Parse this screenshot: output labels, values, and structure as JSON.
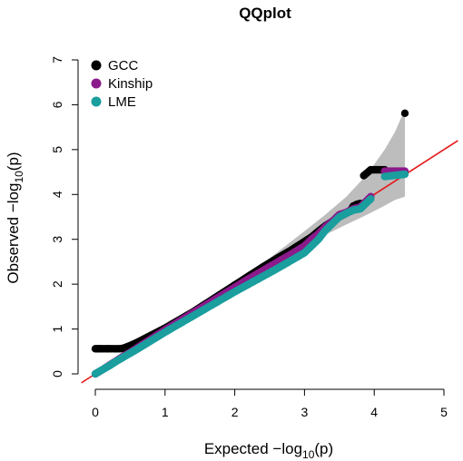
{
  "chart_data": {
    "type": "scatter",
    "title": "QQplot",
    "xlabel": {
      "prefix": "Expected  −log",
      "sub": "10",
      "suffix": "(p)"
    },
    "ylabel": {
      "prefix": "Observed  −log",
      "sub": "10",
      "suffix": "(p)"
    },
    "xlim": [
      0,
      5
    ],
    "ylim": [
      0,
      7
    ],
    "x_ticks": [
      "0",
      "1",
      "2",
      "3",
      "4",
      "5"
    ],
    "y_ticks": [
      "0",
      "1",
      "2",
      "3",
      "4",
      "5",
      "6",
      "7"
    ],
    "legend_position": "top-left",
    "reference_line": {
      "slope": 1,
      "intercept": 0,
      "color": "#e41a1c"
    },
    "confidence_band": {
      "color": "#bdbdbd",
      "x": [
        0.0,
        0.5,
        1.0,
        1.5,
        2.0,
        2.5,
        3.0,
        3.3,
        3.6,
        3.9,
        4.15,
        4.3,
        4.44
      ],
      "lower": [
        0.0,
        0.49,
        0.98,
        1.47,
        1.95,
        2.42,
        2.85,
        3.1,
        3.33,
        3.55,
        3.75,
        3.88,
        3.95
      ],
      "upper": [
        0.0,
        0.51,
        1.02,
        1.53,
        2.05,
        2.58,
        3.18,
        3.55,
        3.95,
        4.45,
        5.0,
        5.4,
        5.9
      ]
    },
    "series": [
      {
        "name": "GCC",
        "color": "#000000",
        "x": [
          0.0,
          0.05,
          0.1,
          0.15,
          0.2,
          0.25,
          0.3,
          0.35,
          0.4,
          0.45,
          0.5,
          0.6,
          0.7,
          0.8,
          0.9,
          1.0,
          1.2,
          1.4,
          1.6,
          1.8,
          2.0,
          2.2,
          2.4,
          2.6,
          2.8,
          3.0,
          3.1,
          3.2,
          3.3,
          3.4,
          3.5,
          3.6,
          3.65,
          3.7,
          3.75,
          3.8,
          3.85,
          3.95,
          4.15,
          4.44
        ],
        "y": [
          0.56,
          0.56,
          0.56,
          0.56,
          0.56,
          0.56,
          0.56,
          0.56,
          0.57,
          0.6,
          0.63,
          0.7,
          0.78,
          0.86,
          0.94,
          1.02,
          1.2,
          1.38,
          1.58,
          1.78,
          1.98,
          2.18,
          2.38,
          2.57,
          2.75,
          2.95,
          3.05,
          3.18,
          3.3,
          3.4,
          3.5,
          3.58,
          3.62,
          3.74,
          3.78,
          3.8,
          4.42,
          4.55,
          4.55,
          5.81
        ]
      },
      {
        "name": "Kinship",
        "color": "#8b1a8b",
        "x": [
          0.0,
          0.1,
          0.2,
          0.3,
          0.4,
          0.5,
          0.6,
          0.8,
          1.0,
          1.2,
          1.4,
          1.6,
          1.8,
          2.0,
          2.2,
          2.4,
          2.6,
          2.8,
          3.0,
          3.1,
          3.2,
          3.3,
          3.4,
          3.5,
          3.6,
          3.7,
          3.8,
          3.95,
          4.15,
          4.44
        ],
        "y": [
          0.0,
          0.09,
          0.19,
          0.29,
          0.39,
          0.48,
          0.58,
          0.78,
          0.98,
          1.17,
          1.36,
          1.55,
          1.74,
          1.93,
          2.12,
          2.3,
          2.48,
          2.66,
          2.85,
          3.0,
          3.12,
          3.28,
          3.4,
          3.55,
          3.6,
          3.68,
          3.72,
          3.95,
          4.52,
          4.52
        ]
      },
      {
        "name": "LME",
        "color": "#1a9e9e",
        "x": [
          0.0,
          0.1,
          0.2,
          0.3,
          0.4,
          0.5,
          0.6,
          0.8,
          1.0,
          1.2,
          1.4,
          1.6,
          1.8,
          2.0,
          2.2,
          2.4,
          2.6,
          2.8,
          3.0,
          3.1,
          3.2,
          3.3,
          3.4,
          3.5,
          3.6,
          3.7,
          3.8,
          3.95,
          4.15,
          4.44
        ],
        "y": [
          0.0,
          0.09,
          0.18,
          0.28,
          0.37,
          0.46,
          0.55,
          0.74,
          0.93,
          1.11,
          1.29,
          1.47,
          1.65,
          1.83,
          2.0,
          2.17,
          2.34,
          2.52,
          2.7,
          2.85,
          3.0,
          3.2,
          3.35,
          3.5,
          3.58,
          3.65,
          3.68,
          3.9,
          4.4,
          4.45
        ]
      }
    ]
  }
}
